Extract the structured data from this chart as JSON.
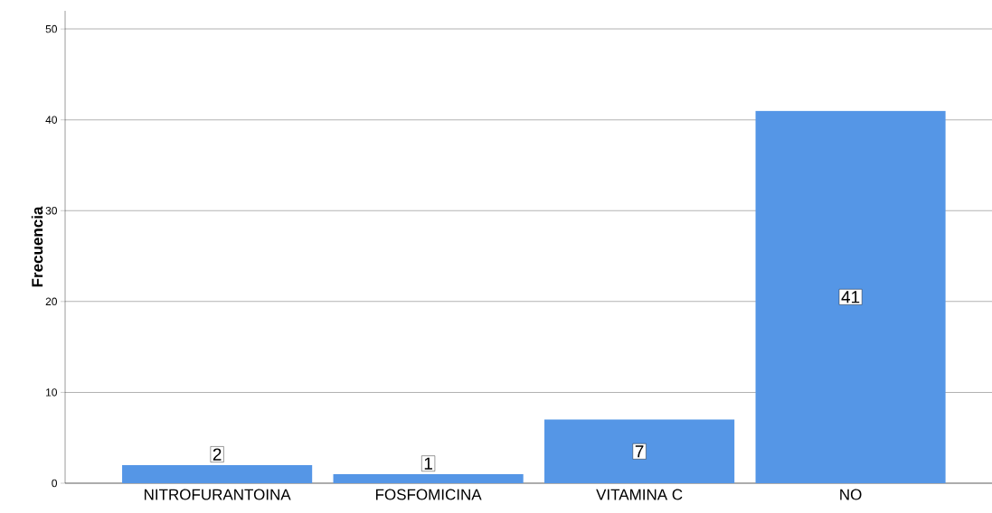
{
  "chart_data": {
    "type": "bar",
    "ylabel": "Frecuencia",
    "categories": [
      "NITROFURANTOINA",
      "FOSFOMICINA",
      "VITAMINA C",
      "NO"
    ],
    "values": [
      2,
      1,
      7,
      41
    ],
    "color": "#5596e6",
    "ylim": [
      0,
      52
    ],
    "yticks": [
      0,
      10,
      20,
      30,
      40,
      50
    ],
    "grid": "y",
    "data_labels": true
  }
}
